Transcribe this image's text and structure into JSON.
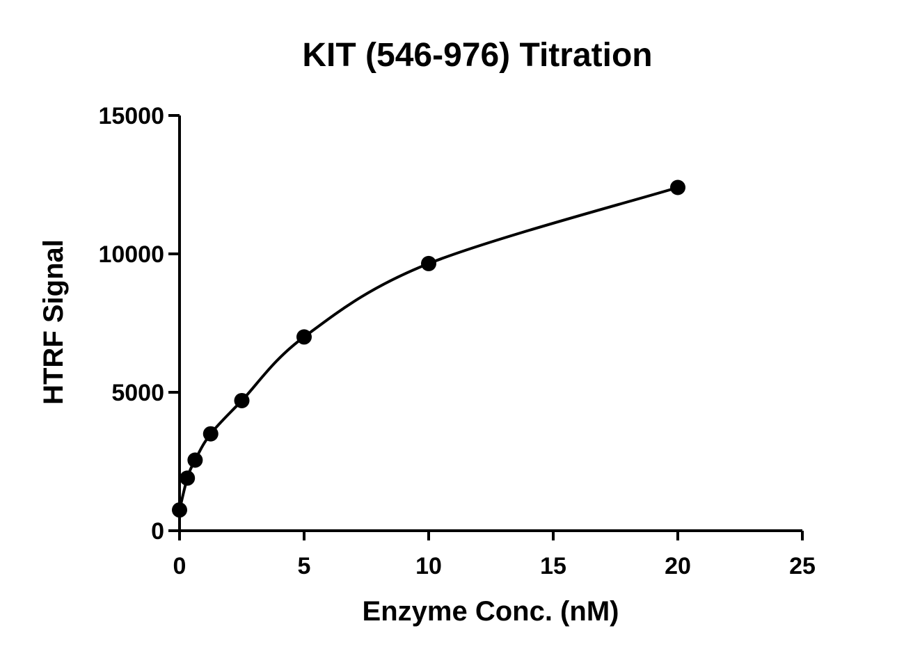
{
  "chart_data": {
    "type": "scatter",
    "title": "KIT (546-976) Titration",
    "xlabel": "Enzyme Conc. (nM)",
    "ylabel": "HTRF Signal",
    "xlim": [
      0,
      25
    ],
    "ylim": [
      0,
      15000
    ],
    "xticks": [
      "0",
      "5",
      "10",
      "15",
      "20",
      "25"
    ],
    "yticks": [
      "0",
      "5000",
      "10000",
      "15000"
    ],
    "grid": false,
    "fit_curve": true,
    "marker_color": "#000000",
    "line_color": "#000000",
    "series": [
      {
        "x": [
          0,
          0.3125,
          0.625,
          1.25,
          2.5,
          5,
          10,
          20
        ],
        "y": [
          750,
          1900,
          2550,
          3500,
          4700,
          7000,
          9650,
          12400
        ]
      }
    ]
  }
}
